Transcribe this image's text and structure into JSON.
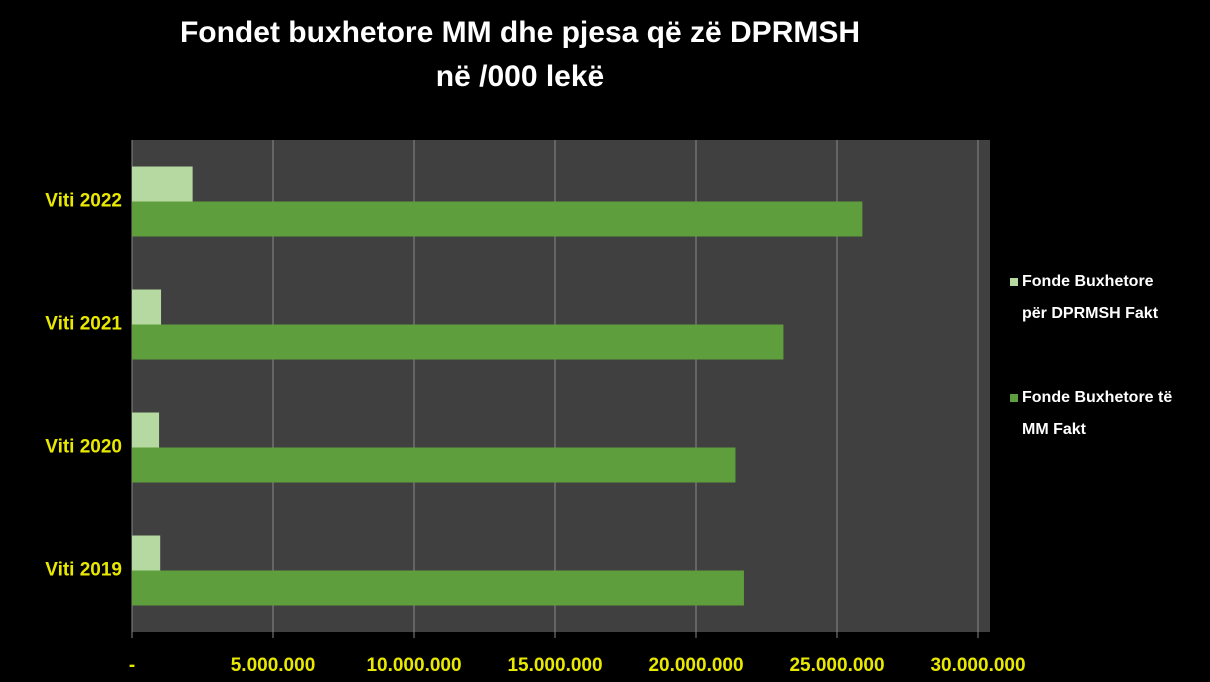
{
  "chart_data": {
    "type": "hbar",
    "title": [
      "Fondet buxhetore MM dhe pjesa që zë DPRMSH",
      "në /000 lekë"
    ],
    "categories": [
      "Viti 2019",
      "Viti 2020",
      "Viti 2021",
      "Viti 2022"
    ],
    "series": [
      {
        "name": "Fonde Buxhetore për DPRMSH Fakt",
        "color": "#b5d9a0",
        "values": [
          1000000,
          960000,
          1030000,
          2150000
        ]
      },
      {
        "name": "Fonde Buxhetore të MM Fakt",
        "color": "#5e9e3c",
        "values": [
          21700000,
          21400000,
          23100000,
          25900000
        ]
      }
    ],
    "xlim": [
      0,
      30000000
    ],
    "xticks": [
      {
        "value": 0,
        "label": "-"
      },
      {
        "value": 5000000,
        "label": "5.000.000"
      },
      {
        "value": 10000000,
        "label": "10.000.000"
      },
      {
        "value": 15000000,
        "label": "15.000.000"
      },
      {
        "value": 20000000,
        "label": "20.000.000"
      },
      {
        "value": 25000000,
        "label": "25.000.000"
      },
      {
        "value": 30000000,
        "label": "30.000.000"
      }
    ],
    "grid": true,
    "legend": "right"
  }
}
